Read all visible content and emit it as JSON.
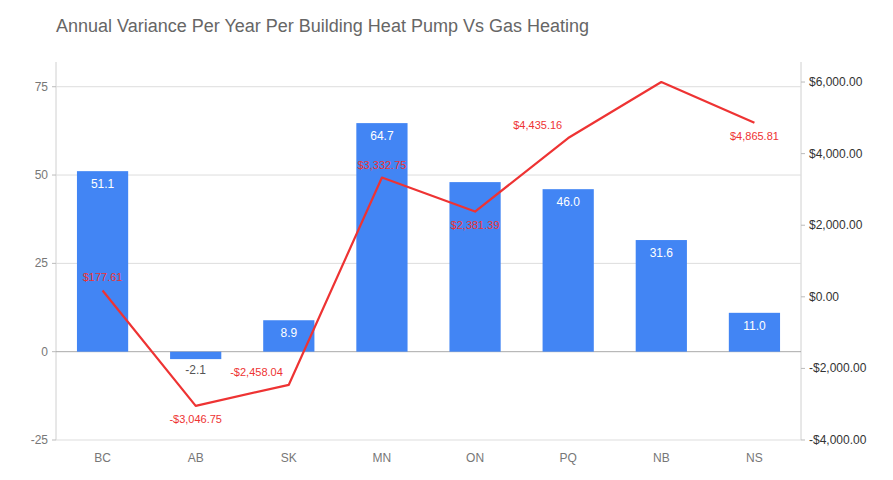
{
  "chart_data": {
    "type": "bar",
    "title": "Annual Variance Per Year Per Building Heat Pump Vs Gas Heating",
    "categories": [
      "BC",
      "AB",
      "SK",
      "MN",
      "ON",
      "PQ",
      "NB",
      "NS"
    ],
    "series": [
      {
        "type": "bar",
        "color": "#4285F4",
        "values": [
          51.1,
          -2.1,
          8.9,
          64.7,
          48.0,
          46.0,
          31.6,
          11.0
        ],
        "value_labels": [
          "51.1",
          "-2.1",
          "8.9",
          "64.7",
          null,
          "46.0",
          "31.6",
          "11.0"
        ]
      },
      {
        "type": "line",
        "color": "#EE3333",
        "axis": "y2",
        "values": [
          177.61,
          -3046.75,
          -2458.04,
          3332.75,
          2381.39,
          4435.16,
          6000.0,
          4865.81
        ],
        "value_labels": [
          "$177.61",
          "-$3,046.75",
          "-$2,458.04",
          "$3,332.75",
          "$2,381.39",
          "$4,435.16",
          null,
          "$4,865.81"
        ]
      }
    ],
    "ylim": [
      -25.0,
      82.0
    ],
    "yticks": [
      -25,
      0,
      25,
      50,
      75
    ],
    "y2lim": [
      -4000.0,
      6560.0
    ],
    "y2ticks": [
      {
        "value": -4000,
        "label": "-$4,000.00"
      },
      {
        "value": -2000,
        "label": "-$2,000.00"
      },
      {
        "value": 0,
        "label": "$0.00"
      },
      {
        "value": 2000,
        "label": "$2,000.00"
      },
      {
        "value": 4000,
        "label": "$4,000.00"
      },
      {
        "value": 6000,
        "label": "$6,000.00"
      }
    ],
    "grid": true,
    "data_labels": true
  }
}
